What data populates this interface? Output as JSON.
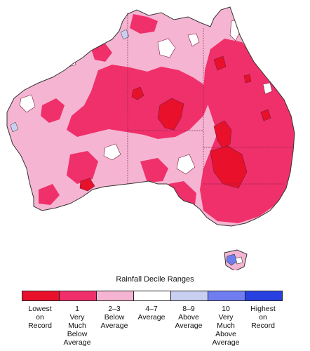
{
  "legend": {
    "title": "Rainfall Decile Ranges",
    "items": [
      {
        "label": "Lowest\non\nRecord",
        "color": "#e8102a"
      },
      {
        "label": "1\nVery\nMuch\nBelow\nAverage",
        "color": "#f0306a"
      },
      {
        "label": "2–3\nBelow\nAverage",
        "color": "#f5b5d2"
      },
      {
        "label": "4–7\nAverage",
        "color": "#ffffff"
      },
      {
        "label": "8–9\nAbove\nAverage",
        "color": "#c9cff0"
      },
      {
        "label": "10\nVery\nMuch\nAbove\nAverage",
        "color": "#6f7df0"
      },
      {
        "label": "Highest\non\nRecord",
        "color": "#2840e0"
      }
    ]
  },
  "colors": {
    "lowest": "#e8102a",
    "very_much_below": "#f0306a",
    "below": "#f5b5d2",
    "average": "#ffffff",
    "above": "#c9cff0",
    "very_much_above": "#6f7df0",
    "highest": "#2840e0",
    "borders": "#8a2050"
  }
}
